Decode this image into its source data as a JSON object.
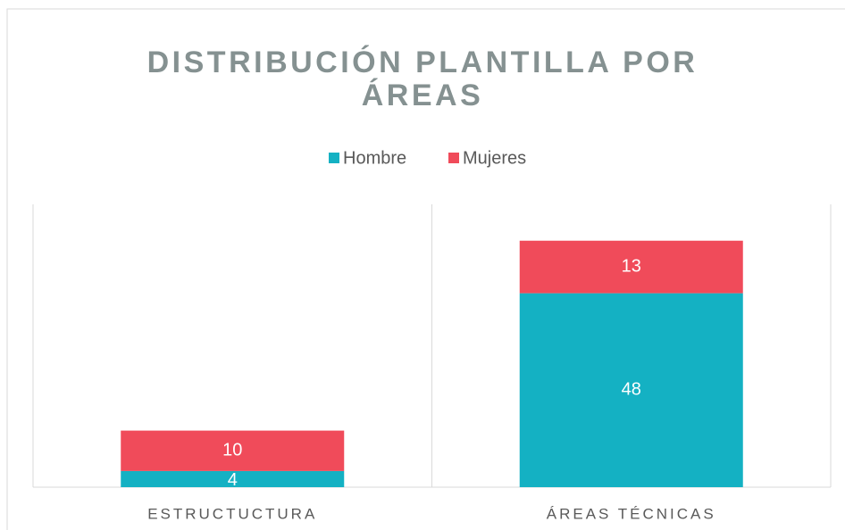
{
  "chart_data": {
    "type": "stacked_bar",
    "title": "DISTRIBUCIÓN PLANTILLA POR ÁREAS",
    "categories": [
      "ESTRUCTUCTURA",
      "ÁREAS TÉCNICAS"
    ],
    "series": [
      {
        "name": "Hombre",
        "color": "#14b1c3",
        "values": [
          4,
          48
        ]
      },
      {
        "name": "Mujeres",
        "color": "#f04b5a",
        "values": [
          10,
          13
        ]
      }
    ],
    "ylim": [
      0,
      70
    ],
    "legend": "top"
  }
}
